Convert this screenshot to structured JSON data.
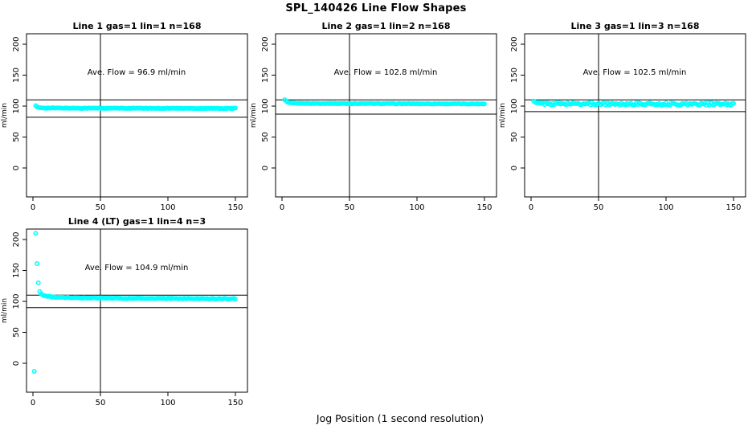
{
  "figure": {
    "title": "SPL_140426  Line Flow Shapes",
    "xlabel": "Jog Position (1 second resolution)",
    "point_color": "#00FFFF",
    "axis_color": "#000000",
    "background": "#FFFFFF"
  },
  "chart_data": {
    "type": "scatter",
    "title": "SPL_140426  Line Flow Shapes",
    "xlabel": "Jog Position (1 second resolution)",
    "ylabel": "ml/min",
    "x_ticks": [
      0,
      50,
      100,
      150
    ],
    "y_ticks": [
      0,
      50,
      100,
      150,
      200
    ],
    "x_domain": [
      -4.8,
      159
    ],
    "y_domain": [
      -47,
      217
    ],
    "vertical_line_x": 50,
    "grid": "off",
    "legend": "none",
    "panels": [
      {
        "title": "Line 1 gas=1 lin=1 n=168",
        "ave_flow_label": "Ave. Flow =  96.9  ml/min",
        "ave_flow": 96.9,
        "n": 168,
        "ref_upper": 110,
        "ref_lower": 82,
        "noise": 0.5,
        "x_range": [
          2,
          150
        ],
        "outliers": [],
        "trend": [
          [
            2,
            100.5
          ],
          [
            3,
            98.5
          ],
          [
            4,
            97.5
          ],
          [
            6,
            97.2
          ],
          [
            10,
            96.9
          ],
          [
            30,
            96.7
          ],
          [
            60,
            96.5
          ],
          [
            100,
            96.4
          ],
          [
            150,
            96.2
          ]
        ]
      },
      {
        "title": "Line 2 gas=1 lin=2 n=168",
        "ave_flow_label": "Ave. Flow =  102.8  ml/min",
        "ave_flow": 102.8,
        "n": 168,
        "ref_upper": 110,
        "ref_lower": 87,
        "noise": 0.5,
        "x_range": [
          2,
          150
        ],
        "outliers": [],
        "trend": [
          [
            2,
            110
          ],
          [
            3,
            108
          ],
          [
            4,
            106.5
          ],
          [
            5,
            105.5
          ],
          [
            7,
            104.8
          ],
          [
            10,
            104.5
          ],
          [
            30,
            104.2
          ],
          [
            60,
            104.0
          ],
          [
            100,
            103.8
          ],
          [
            150,
            103.6
          ]
        ]
      },
      {
        "title": "Line 3 gas=1 lin=3 n=168",
        "ave_flow_label": "Ave. Flow =  102.5  ml/min",
        "ave_flow": 102.5,
        "n": 168,
        "ref_upper": 110,
        "ref_lower": 91,
        "noise": 2.0,
        "x_range": [
          2,
          150
        ],
        "outliers": [],
        "trend": [
          [
            2,
            107
          ],
          [
            3,
            105.5
          ],
          [
            5,
            104.5
          ],
          [
            10,
            104.0
          ],
          [
            50,
            103.7
          ],
          [
            100,
            103.4
          ],
          [
            150,
            103.2
          ]
        ]
      },
      {
        "title": "Line 4 (LT) gas=1 lin=4 n=3",
        "ave_flow_label": "Ave. Flow =  104.9  ml/min",
        "ave_flow": 104.9,
        "n": 3,
        "ref_upper": 110,
        "ref_lower": 90,
        "noise": 0.6,
        "x_range": [
          6,
          150
        ],
        "outliers": [
          [
            1,
            -13
          ],
          [
            2,
            210
          ],
          [
            3,
            161
          ],
          [
            4,
            130
          ],
          [
            5,
            116
          ]
        ],
        "trend": [
          [
            6,
            112
          ],
          [
            8,
            109.5
          ],
          [
            10,
            108.5
          ],
          [
            13,
            107.5
          ],
          [
            18,
            106.5
          ],
          [
            25,
            106
          ],
          [
            40,
            105.5
          ],
          [
            70,
            105
          ],
          [
            110,
            104.6
          ],
          [
            150,
            104.3
          ]
        ]
      }
    ]
  }
}
